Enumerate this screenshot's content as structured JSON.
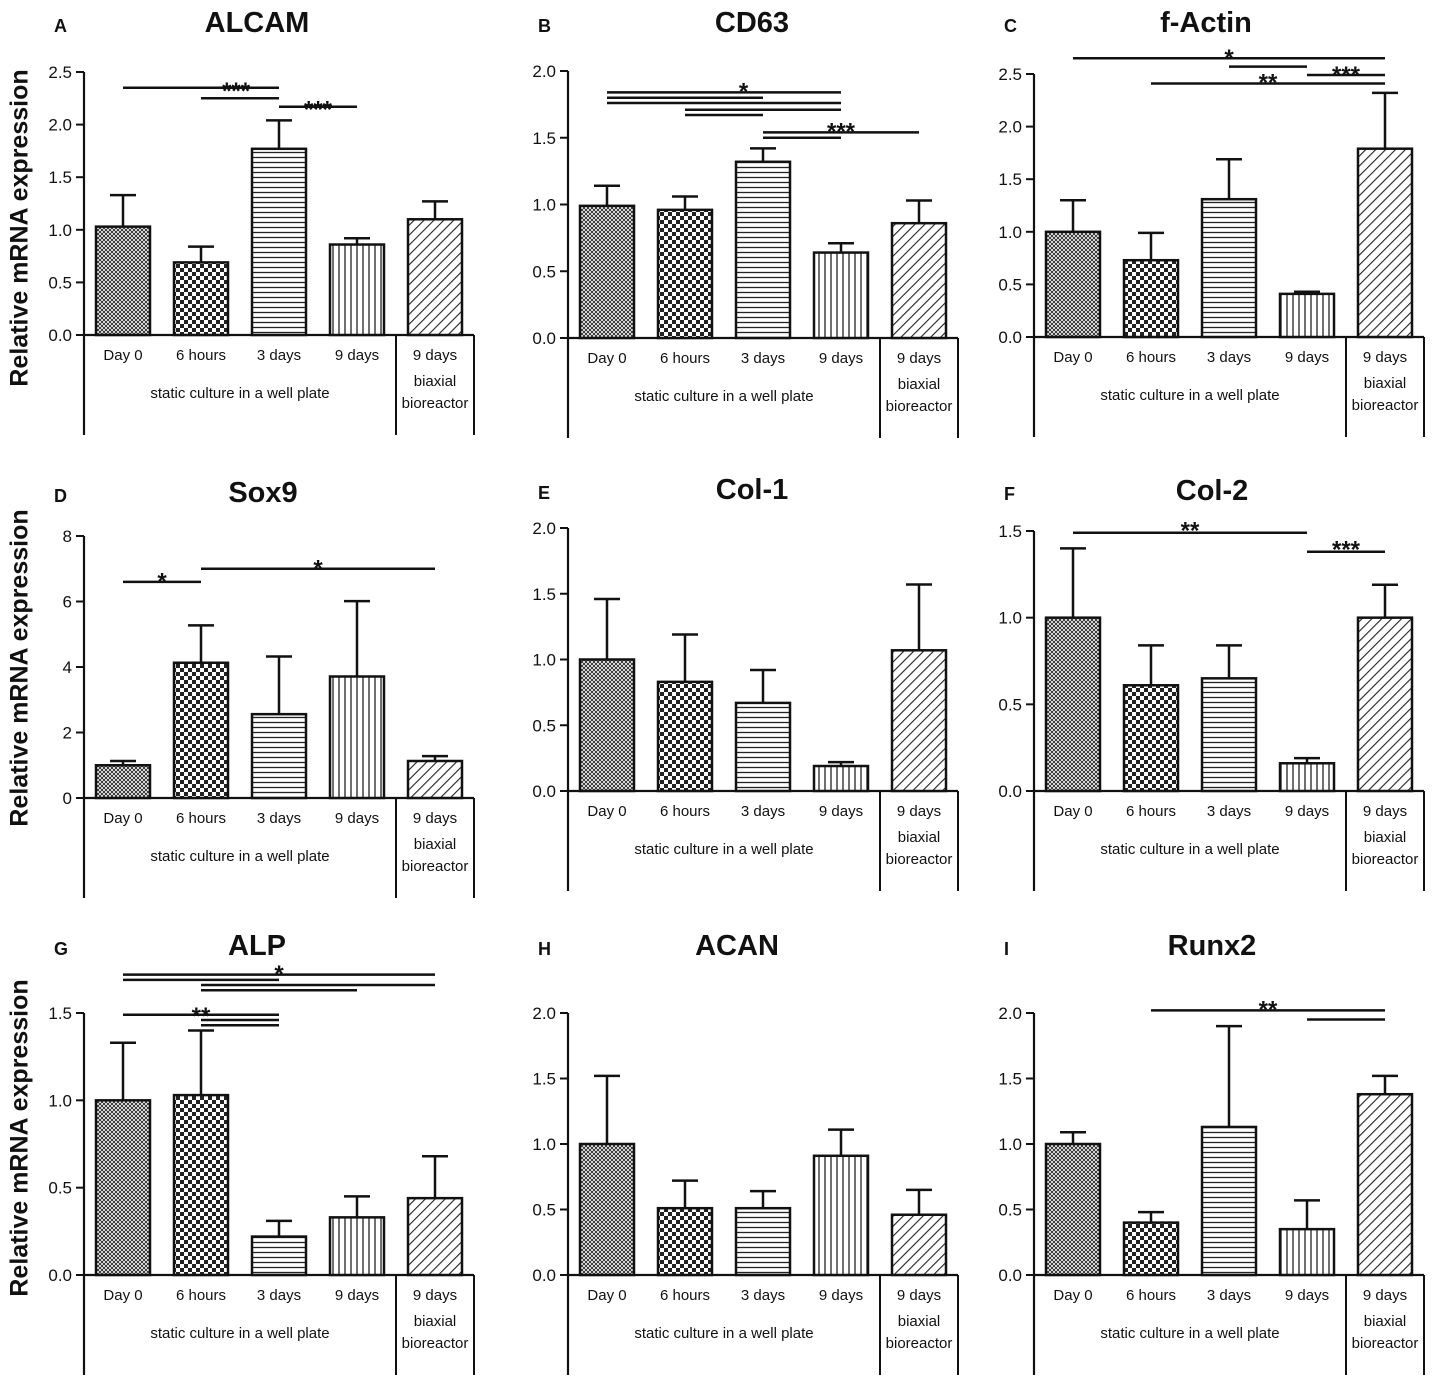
{
  "y_axis_label": "Relative mRNA expression",
  "categories": [
    "Day 0",
    "6 hours",
    "3 days",
    "9 days",
    "9 days"
  ],
  "group_labels": {
    "static": "static culture in a well plate",
    "bioreactor_line1": "biaxial",
    "bioreactor_line2": "bioreactor"
  },
  "colors": {
    "axis": "#111111",
    "bar_fill": "#ffffff",
    "pattern": "#222222"
  },
  "bar_patterns": [
    "fine-crosshatch",
    "checkerboard",
    "horizontal-lines",
    "vertical-lines",
    "diagonal-lines"
  ],
  "chart_data": [
    {
      "panel": "A",
      "title": "ALCAM",
      "type": "bar",
      "ylim": [
        0,
        2.5
      ],
      "ticks": [
        "0.0",
        "0.5",
        "1.0",
        "1.5",
        "2.0",
        "2.5"
      ],
      "values": [
        1.03,
        0.69,
        1.77,
        0.86,
        1.1
      ],
      "errors": [
        0.3,
        0.15,
        0.27,
        0.06,
        0.17
      ],
      "sig": [
        {
          "from": 0,
          "to": 2,
          "y": 2.35
        },
        {
          "from": 1,
          "to": 2,
          "y": 2.25
        },
        {
          "from": 2,
          "to": 3,
          "y": 2.17
        }
      ],
      "stars": [
        {
          "text": "***",
          "x": 1.45,
          "y": 2.35
        },
        {
          "text": "***",
          "x": 2.5,
          "y": 2.17
        }
      ]
    },
    {
      "panel": "B",
      "title": "CD63",
      "type": "bar",
      "ylim": [
        0,
        2.0
      ],
      "ticks": [
        "0.0",
        "0.5",
        "1.0",
        "1.5",
        "2.0"
      ],
      "values": [
        0.99,
        0.96,
        1.32,
        0.64,
        0.86
      ],
      "errors": [
        0.15,
        0.1,
        0.1,
        0.07,
        0.17
      ],
      "sig": [
        {
          "from": 0,
          "to": 3,
          "y": 1.84
        },
        {
          "from": 0,
          "to": 2,
          "y": 1.8
        },
        {
          "from": 0,
          "to": 3,
          "y": 1.76
        },
        {
          "from": 1,
          "to": 3,
          "y": 1.71
        },
        {
          "from": 1,
          "to": 2,
          "y": 1.67
        },
        {
          "from": 2,
          "to": 4,
          "y": 1.54
        },
        {
          "from": 2,
          "to": 3,
          "y": 1.5
        }
      ],
      "stars": [
        {
          "text": "*",
          "x": 1.75,
          "y": 1.87
        },
        {
          "text": "***",
          "x": 3.0,
          "y": 1.57
        }
      ]
    },
    {
      "panel": "C",
      "title": "f-Actin",
      "type": "bar",
      "ylim": [
        0,
        2.5
      ],
      "ticks": [
        "0.0",
        "0.5",
        "1.0",
        "1.5",
        "2.0",
        "2.5"
      ],
      "values": [
        1.0,
        0.73,
        1.31,
        0.41,
        1.79
      ],
      "errors": [
        0.3,
        0.26,
        0.38,
        0.02,
        0.53
      ],
      "sig": [
        {
          "from": 0,
          "to": 4,
          "y": 2.65
        },
        {
          "from": 2,
          "to": 3,
          "y": 2.57
        },
        {
          "from": 3,
          "to": 4,
          "y": 2.49
        },
        {
          "from": 1,
          "to": 4,
          "y": 2.41
        }
      ],
      "stars": [
        {
          "text": "*",
          "x": 2.0,
          "y": 2.68
        },
        {
          "text": "**",
          "x": 2.5,
          "y": 2.45
        },
        {
          "text": "***",
          "x": 3.5,
          "y": 2.52
        }
      ]
    },
    {
      "panel": "D",
      "title": "Sox9",
      "type": "bar",
      "ylim": [
        0,
        8
      ],
      "ticks": [
        "0",
        "2",
        "4",
        "6",
        "8"
      ],
      "values": [
        1.0,
        4.13,
        2.56,
        3.71,
        1.13
      ],
      "errors": [
        0.13,
        1.14,
        1.76,
        2.3,
        0.15
      ],
      "sig": [
        {
          "from": 0,
          "to": 1,
          "y": 6.6
        },
        {
          "from": 1,
          "to": 4,
          "y": 7.0
        }
      ],
      "stars": [
        {
          "text": "*",
          "x": 0.5,
          "y": 6.7
        },
        {
          "text": "*",
          "x": 2.5,
          "y": 7.1
        }
      ]
    },
    {
      "panel": "E",
      "title": "Col-1",
      "type": "bar",
      "ylim": [
        0,
        2.0
      ],
      "ticks": [
        "0.0",
        "0.5",
        "1.0",
        "1.5",
        "2.0"
      ],
      "values": [
        1.0,
        0.83,
        0.67,
        0.19,
        1.07
      ],
      "errors": [
        0.46,
        0.36,
        0.25,
        0.03,
        0.5
      ],
      "sig": [],
      "stars": []
    },
    {
      "panel": "F",
      "title": "Col-2",
      "type": "bar",
      "ylim": [
        0,
        1.5
      ],
      "ticks": [
        "0.0",
        "0.5",
        "1.0",
        "1.5"
      ],
      "values": [
        1.0,
        0.61,
        0.65,
        0.16,
        1.0
      ],
      "errors": [
        0.4,
        0.23,
        0.19,
        0.03,
        0.19
      ],
      "sig": [
        {
          "from": 0,
          "to": 3,
          "y": 1.49
        },
        {
          "from": 3,
          "to": 4,
          "y": 1.38
        }
      ],
      "stars": [
        {
          "text": "**",
          "x": 1.5,
          "y": 1.52
        },
        {
          "text": "***",
          "x": 3.5,
          "y": 1.41
        }
      ]
    },
    {
      "panel": "G",
      "title": "ALP",
      "type": "bar",
      "ylim": [
        0,
        1.5
      ],
      "ticks": [
        "0.0",
        "0.5",
        "1.0",
        "1.5"
      ],
      "values": [
        1.0,
        1.03,
        0.22,
        0.33,
        0.44
      ],
      "errors": [
        0.33,
        0.37,
        0.09,
        0.12,
        0.24
      ],
      "sig": [
        {
          "from": 0,
          "to": 4,
          "y": 1.72
        },
        {
          "from": 0,
          "to": 2,
          "y": 1.69
        },
        {
          "from": 1,
          "to": 4,
          "y": 1.66
        },
        {
          "from": 1,
          "to": 3,
          "y": 1.63
        },
        {
          "from": 0,
          "to": 2,
          "y": 1.49
        },
        {
          "from": 1,
          "to": 2,
          "y": 1.46
        },
        {
          "from": 1,
          "to": 2,
          "y": 1.43
        }
      ],
      "stars": [
        {
          "text": "*",
          "x": 2.0,
          "y": 1.74
        },
        {
          "text": "**",
          "x": 1.0,
          "y": 1.5
        }
      ]
    },
    {
      "panel": "H",
      "title": "ACAN",
      "type": "bar",
      "ylim": [
        0,
        2.0
      ],
      "ticks": [
        "0.0",
        "0.5",
        "1.0",
        "1.5",
        "2.0"
      ],
      "values": [
        1.0,
        0.51,
        0.51,
        0.91,
        0.46
      ],
      "errors": [
        0.52,
        0.21,
        0.13,
        0.2,
        0.19
      ],
      "sig": [],
      "stars": []
    },
    {
      "panel": "I",
      "title": "Runx2",
      "type": "bar",
      "ylim": [
        0,
        2.0
      ],
      "ticks": [
        "0.0",
        "0.5",
        "1.0",
        "1.5",
        "2.0"
      ],
      "values": [
        1.0,
        0.4,
        1.13,
        0.35,
        1.38
      ],
      "errors": [
        0.09,
        0.08,
        0.77,
        0.22,
        0.14
      ],
      "sig": [
        {
          "from": 1,
          "to": 4,
          "y": 2.02
        },
        {
          "from": 3,
          "to": 4,
          "y": 1.95
        }
      ],
      "stars": [
        {
          "text": "**",
          "x": 2.5,
          "y": 2.05
        }
      ]
    }
  ]
}
